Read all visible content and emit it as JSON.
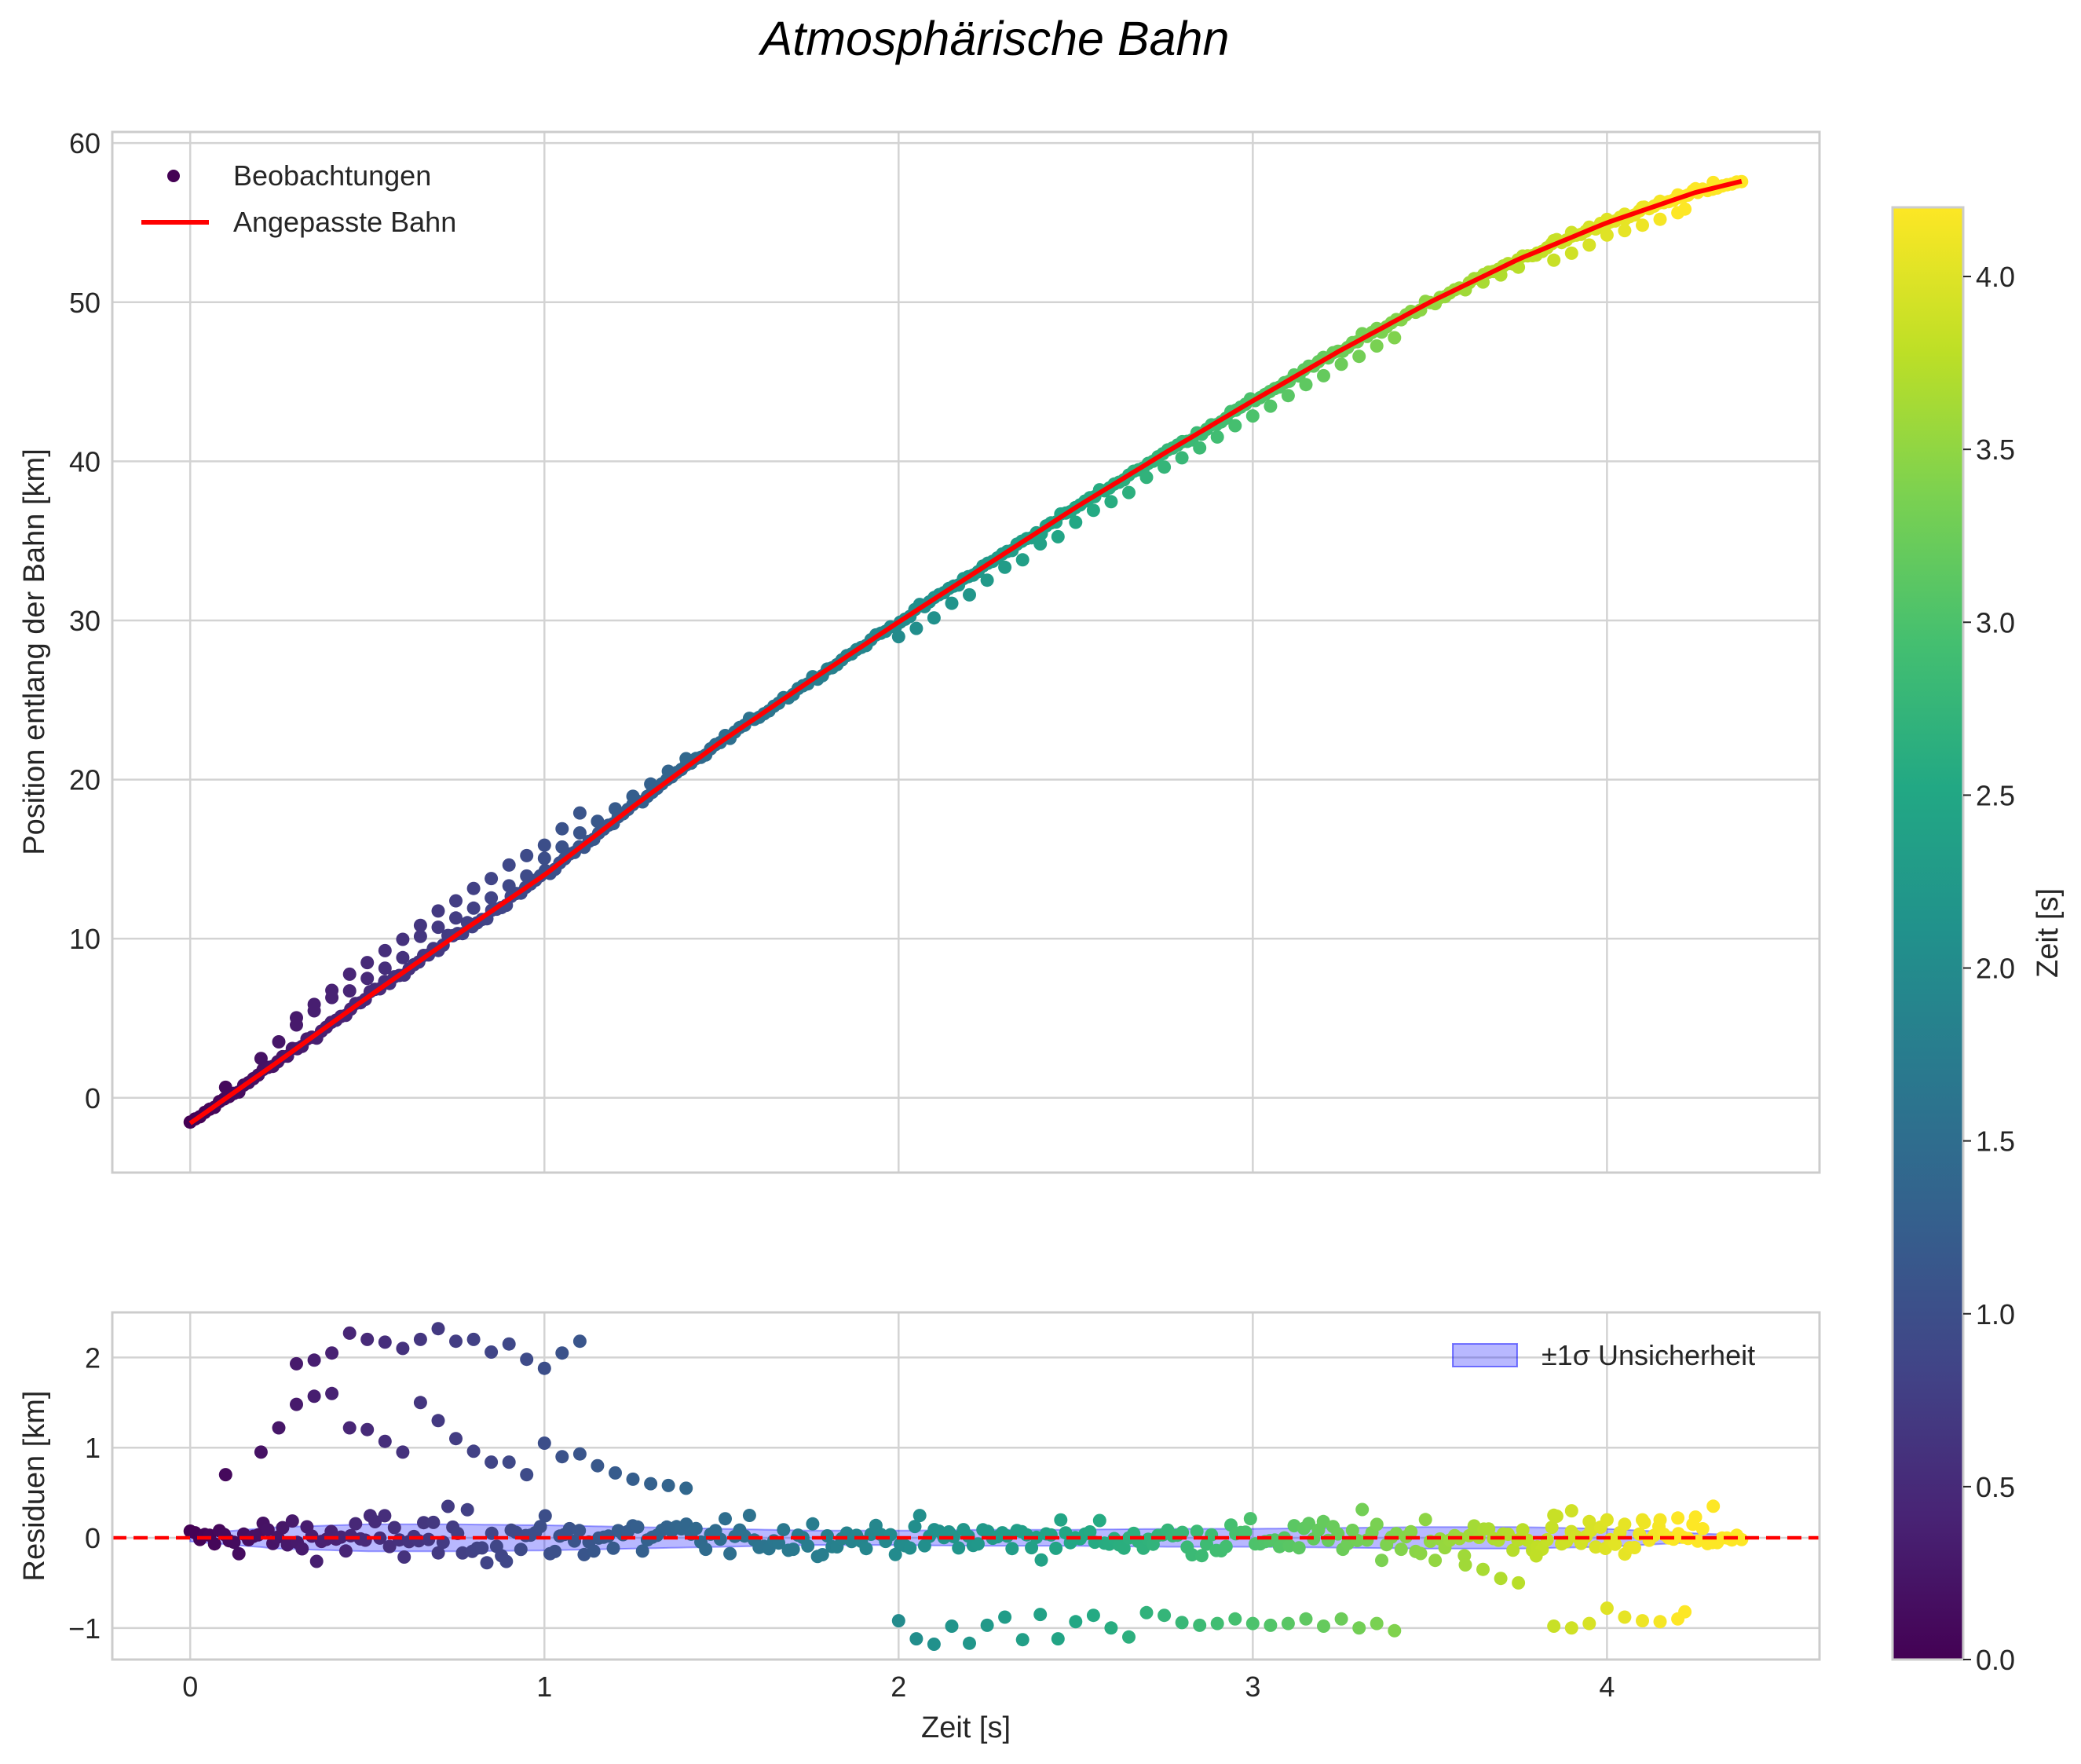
{
  "chart_data": {
    "title": "Atmosphärische Bahn",
    "colormap": "viridis",
    "colorbar": {
      "label": "Zeit [s]",
      "range": [
        0.0,
        4.2
      ],
      "ticks": [
        "0.0",
        "0.5",
        "1.0",
        "1.5",
        "2.0",
        "2.5",
        "3.0",
        "3.5",
        "4.0"
      ],
      "tick_values": [
        0.0,
        0.5,
        1.0,
        1.5,
        2.0,
        2.5,
        3.0,
        3.5,
        4.0
      ]
    },
    "xaxis": {
      "label": "Zeit [s]",
      "range": [
        -0.22,
        4.6
      ],
      "ticks": [
        "0",
        "1",
        "2",
        "3",
        "4"
      ],
      "tick_values": [
        0,
        1,
        2,
        3,
        4
      ]
    },
    "top_panel": {
      "type": "scatter+line",
      "ylabel": "Position entlang der Bahn [km]",
      "ylim": [
        -4.7,
        60.7
      ],
      "yticks": [
        "0",
        "10",
        "20",
        "30",
        "40",
        "50",
        "60"
      ],
      "ytick_values": [
        0,
        10,
        20,
        30,
        40,
        50,
        60
      ],
      "grid": true,
      "legend": {
        "position": "top-left",
        "entries": [
          "Beobachtungen",
          "Angepasste Bahn"
        ]
      },
      "observations": {
        "name": "Beobachtungen",
        "t_range": [
          0.0,
          4.38
        ],
        "n_points": 420,
        "model_offset_km": "residual"
      },
      "fit": {
        "name": "Angepasste Bahn",
        "color": "#ff0000",
        "t": [
          0.0,
          0.25,
          0.5,
          0.75,
          1.0,
          1.25,
          1.5,
          1.75,
          2.0,
          2.25,
          2.5,
          2.75,
          3.0,
          3.25,
          3.5,
          3.75,
          4.0,
          4.25,
          4.38
        ],
        "y": [
          -1.6,
          2.3,
          6.3,
          10.2,
          14.0,
          18.3,
          22.4,
          26.2,
          29.9,
          33.5,
          37.1,
          40.5,
          43.8,
          47.0,
          50.0,
          52.7,
          55.0,
          56.9,
          57.6
        ]
      }
    },
    "bottom_panel": {
      "type": "scatter+band",
      "ylabel": "Residuen [km]",
      "ylim": [
        -1.35,
        2.5
      ],
      "yticks": [
        "−1",
        "0",
        "1",
        "2"
      ],
      "ytick_values": [
        -1,
        0,
        1,
        2
      ],
      "grid": true,
      "zero_line_color": "#ff0000",
      "legend": {
        "position": "top-right",
        "entries": [
          "±1σ Unsicherheit"
        ]
      },
      "band": {
        "name": "±1σ Unsicherheit",
        "color": "#0000ff",
        "t": [
          0.0,
          0.25,
          0.5,
          0.75,
          1.0,
          1.25,
          1.5,
          1.75,
          2.0,
          2.25,
          2.5,
          2.75,
          3.0,
          3.25,
          3.5,
          3.75,
          4.0,
          4.25,
          4.38
        ],
        "sigma": [
          0.04,
          0.12,
          0.15,
          0.15,
          0.14,
          0.12,
          0.1,
          0.08,
          0.08,
          0.09,
          0.09,
          0.1,
          0.1,
          0.11,
          0.12,
          0.12,
          0.1,
          0.05,
          0.03
        ]
      },
      "residual_groups": [
        {
          "name": "structured-upper",
          "t": [
            0.1,
            0.2,
            0.25,
            0.3,
            0.35,
            0.4,
            0.45,
            0.5,
            0.55,
            0.6,
            0.65,
            0.7,
            0.75,
            0.8,
            0.85,
            0.9,
            0.95,
            1.0,
            1.05,
            1.1,
            1.15,
            1.2,
            1.25,
            1.3,
            1.35,
            1.4
          ],
          "r": [
            0.7,
            0.95,
            1.22,
            1.48,
            1.57,
            1.6,
            1.22,
            1.2,
            1.07,
            0.95,
            1.5,
            1.3,
            1.1,
            0.96,
            0.84,
            0.84,
            0.7,
            1.05,
            0.9,
            0.93,
            0.8,
            0.72,
            0.65,
            0.6,
            0.58,
            0.55
          ]
        },
        {
          "name": "structured-top",
          "t": [
            0.3,
            0.35,
            0.4,
            0.45,
            0.5,
            0.55,
            0.6,
            0.65,
            0.7,
            0.75,
            0.8,
            0.85,
            0.9,
            0.95,
            1.0,
            1.05,
            1.1
          ],
          "r": [
            1.93,
            1.97,
            2.05,
            2.27,
            2.2,
            2.17,
            2.1,
            2.2,
            2.32,
            2.18,
            2.2,
            2.06,
            2.15,
            1.98,
            1.88,
            2.05,
            2.18
          ]
        },
        {
          "name": "structured-late-lower",
          "t": [
            2.0,
            2.05,
            2.1,
            2.15,
            2.2,
            2.25,
            2.3,
            2.35,
            2.4,
            2.45,
            2.5,
            2.55,
            2.6,
            2.65,
            2.7,
            2.75,
            2.8,
            2.85,
            2.9,
            2.95,
            3.0,
            3.05,
            3.1,
            3.15,
            3.2,
            3.25,
            3.3,
            3.35,
            3.4
          ],
          "r": [
            -0.92,
            -1.12,
            -1.18,
            -0.98,
            -1.17,
            -0.97,
            -0.88,
            -1.13,
            -0.85,
            -1.12,
            -0.93,
            -0.86,
            -1.0,
            -1.1,
            -0.83,
            -0.86,
            -0.94,
            -0.97,
            -0.95,
            -0.9,
            -0.95,
            -0.97,
            -0.95,
            -0.9,
            -0.98,
            -0.9,
            -1.0,
            -0.95,
            -1.03
          ]
        },
        {
          "name": "structured-end-lower",
          "t": [
            3.85,
            3.9,
            3.95,
            4.0,
            4.05,
            4.1,
            4.15,
            4.2,
            4.22
          ],
          "r": [
            -0.98,
            -1.0,
            -0.95,
            -0.78,
            -0.88,
            -0.92,
            -0.93,
            -0.9,
            -0.82
          ]
        },
        {
          "name": "structured-end-upper",
          "t": [
            3.6,
            3.65,
            3.7,
            3.75,
            3.8,
            3.85,
            3.9,
            3.95,
            4.0,
            4.05,
            4.1,
            4.15,
            4.2,
            4.25,
            4.3
          ],
          "r": [
            -0.3,
            -0.35,
            -0.45,
            -0.5,
            -0.2,
            0.25,
            0.3,
            0.18,
            0.2,
            0.15,
            0.2,
            0.2,
            0.22,
            0.23,
            0.35
          ]
        }
      ]
    }
  }
}
